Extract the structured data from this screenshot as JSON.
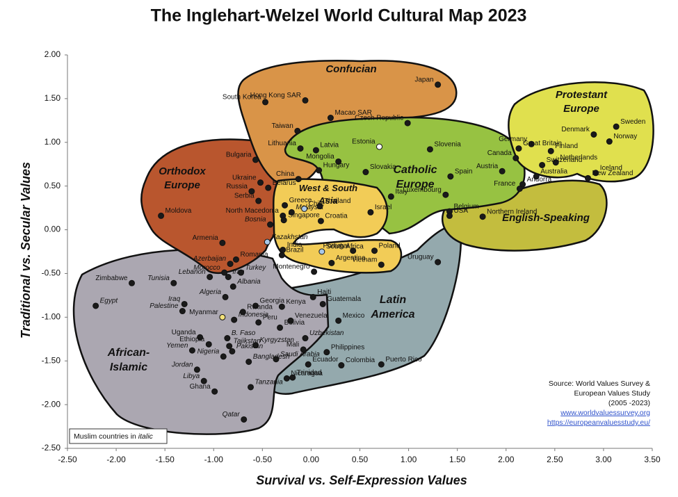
{
  "chart_data": {
    "type": "scatter",
    "title": "The Inglehart-Welzel World Cultural Map 2023",
    "xlabel": "Survival vs. Self-Expression Values",
    "ylabel": "Traditional vs. Secular Values",
    "xlim": [
      -2.5,
      3.5
    ],
    "ylim": [
      -2.5,
      2.0
    ],
    "xticks": [
      {
        "value": -2.5,
        "label": "-2.50"
      },
      {
        "value": -2,
        "label": "-2.00"
      },
      {
        "value": -1.5,
        "label": "-1.50"
      },
      {
        "value": -1,
        "label": "-1.00"
      },
      {
        "value": -0.5,
        "label": "-0.50"
      },
      {
        "value": 0,
        "label": "0.00"
      },
      {
        "value": 0.5,
        "label": "0.50"
      },
      {
        "value": 1,
        "label": "1.00"
      },
      {
        "value": 1.5,
        "label": "1.50"
      },
      {
        "value": 2,
        "label": "2.00"
      },
      {
        "value": 2.5,
        "label": "2.50"
      },
      {
        "value": 3,
        "label": "3.00"
      },
      {
        "value": 3.5,
        "label": "3.50"
      }
    ],
    "yticks": [
      {
        "value": 2,
        "label": "2.00"
      },
      {
        "value": 1.5,
        "label": "1.50"
      },
      {
        "value": 1,
        "label": "1.00"
      },
      {
        "value": 0.5,
        "label": "0.50"
      },
      {
        "value": 0,
        "label": "0.00"
      },
      {
        "value": -0.5,
        "label": "-0.50"
      },
      {
        "value": -1,
        "label": "-1.00"
      },
      {
        "value": -1.5,
        "label": "-1.50"
      },
      {
        "value": -2,
        "label": "-2.00"
      },
      {
        "value": -2.5,
        "label": "-2.50"
      }
    ],
    "marker_color": "#1a1a1a",
    "regions": [
      {
        "lines": [
          "Latin",
          "America"
        ],
        "color": "#94a9ad"
      },
      {
        "lines": [
          "African-",
          "Islamic"
        ],
        "color": "#aba7b1"
      },
      {
        "lines": [
          "Orthodox",
          "Europe"
        ],
        "color": "#b9562e"
      },
      {
        "lines": [
          "Confucian"
        ],
        "color": "#d99448"
      },
      {
        "lines": [
          "English-Speaking"
        ],
        "color": "#c3bd3e"
      },
      {
        "lines": [
          "Catholic",
          "Europe"
        ],
        "color": "#97c242"
      },
      {
        "lines": [
          "West & South",
          "Asia"
        ],
        "color": "#f2cc57"
      },
      {
        "lines": [
          "Protestant",
          "Europe"
        ],
        "color": "#e0e04e"
      }
    ],
    "points": [
      {
        "label": "Japan",
        "x": 1.3,
        "y": 1.66
      },
      {
        "label": "South Korea",
        "x": -0.47,
        "y": 1.46
      },
      {
        "label": "Hong Kong SAR",
        "x": -0.06,
        "y": 1.48
      },
      {
        "label": "Macao SAR",
        "x": 0.2,
        "y": 1.28
      },
      {
        "label": "Taiwan",
        "x": -0.14,
        "y": 1.13
      },
      {
        "label": "Czech Republic",
        "x": 0.99,
        "y": 1.22
      },
      {
        "label": "Lithuania",
        "x": -0.11,
        "y": 0.93
      },
      {
        "label": "Latvia",
        "x": 0.05,
        "y": 0.91
      },
      {
        "label": "Estonia",
        "x": 0.7,
        "y": 0.95,
        "color": "#ffffff"
      },
      {
        "label": "Mongolia",
        "x": 0.28,
        "y": 0.78
      },
      {
        "label": "Slovenia",
        "x": 1.22,
        "y": 0.92
      },
      {
        "label": "Bulgaria",
        "x": -0.57,
        "y": 0.8
      },
      {
        "label": "China",
        "x": -0.13,
        "y": 0.58
      },
      {
        "label": "Hungary",
        "x": 0.08,
        "y": 0.68
      },
      {
        "label": "Slovakia",
        "x": 0.56,
        "y": 0.66
      },
      {
        "label": "Spain",
        "x": 1.43,
        "y": 0.61
      },
      {
        "label": "Ukraine",
        "x": -0.52,
        "y": 0.54
      },
      {
        "label": "Russia",
        "x": -0.61,
        "y": 0.44
      },
      {
        "label": "Belarus",
        "x": -0.44,
        "y": 0.48
      },
      {
        "label": "Serbia",
        "x": -0.54,
        "y": 0.33
      },
      {
        "label": "Greece",
        "x": -0.27,
        "y": 0.28
      },
      {
        "label": "North Macedonia",
        "x": -0.29,
        "y": 0.16
      },
      {
        "label": "Moldova",
        "x": -1.54,
        "y": 0.16
      },
      {
        "label": "Armenia",
        "x": -0.91,
        "y": -0.15
      },
      {
        "label": "Bosnia",
        "x": -0.42,
        "y": 0.06,
        "italic": true
      },
      {
        "label": "Kazakhstan",
        "x": -0.45,
        "y": -0.14,
        "italic": true,
        "color": "#a9c8e8"
      },
      {
        "label": "Singapore",
        "x": -0.28,
        "y": 0.11
      },
      {
        "label": "Malaysia",
        "x": -0.2,
        "y": 0.2,
        "italic": true
      },
      {
        "label": "Thailand",
        "x": 0.09,
        "y": 0.27
      },
      {
        "label": "Chile",
        "x": -0.07,
        "y": 0.24,
        "color": "#a9c8e8"
      },
      {
        "label": "Croatia",
        "x": 0.1,
        "y": 0.1
      },
      {
        "label": "Israel",
        "x": 0.61,
        "y": 0.2
      },
      {
        "label": "Italy",
        "x": 0.82,
        "y": 0.38
      },
      {
        "label": "Luxembourg",
        "x": 1.38,
        "y": 0.4
      },
      {
        "label": "Austria",
        "x": 1.96,
        "y": 0.67
      },
      {
        "label": "Andorra",
        "x": 2.17,
        "y": 0.52
      },
      {
        "label": "France",
        "x": 2.14,
        "y": 0.47
      },
      {
        "label": "Belgium",
        "x": 1.42,
        "y": 0.21
      },
      {
        "label": "USA",
        "x": 1.42,
        "y": 0.16
      },
      {
        "label": "Northern Ireland",
        "x": 1.76,
        "y": 0.15
      },
      {
        "label": "Germany",
        "x": 2.26,
        "y": 0.98
      },
      {
        "label": "Great Britain",
        "x": 2.13,
        "y": 0.93
      },
      {
        "label": "Canada",
        "x": 2.1,
        "y": 0.82
      },
      {
        "label": "Denmark",
        "x": 2.9,
        "y": 1.09
      },
      {
        "label": "Sweden",
        "x": 3.13,
        "y": 1.18
      },
      {
        "label": "Norway",
        "x": 3.06,
        "y": 1.01
      },
      {
        "label": "Finland",
        "x": 2.46,
        "y": 0.9
      },
      {
        "label": "Netherlands",
        "x": 2.51,
        "y": 0.77
      },
      {
        "label": "Switzerland",
        "x": 2.37,
        "y": 0.74
      },
      {
        "label": "Iceland",
        "x": 2.92,
        "y": 0.65
      },
      {
        "label": "Australia",
        "x": 2.31,
        "y": 0.61
      },
      {
        "label": "New Zealand",
        "x": 2.84,
        "y": 0.59
      },
      {
        "label": "Portugal",
        "x": 0.43,
        "y": -0.24
      },
      {
        "label": "Poland",
        "x": 0.65,
        "y": -0.24
      },
      {
        "label": "South Africa",
        "x": 0.11,
        "y": -0.25,
        "color": "#a9c8e8"
      },
      {
        "label": "India",
        "x": -0.29,
        "y": -0.23
      },
      {
        "label": "Brazil",
        "x": -0.3,
        "y": -0.29
      },
      {
        "label": "Vietnam",
        "x": 0.72,
        "y": -0.4
      },
      {
        "label": "Argentina",
        "x": 0.21,
        "y": -0.38
      },
      {
        "label": "Uruguay",
        "x": 1.3,
        "y": -0.37
      },
      {
        "label": "Romania",
        "x": -0.77,
        "y": -0.34
      },
      {
        "label": "Azerbaijan",
        "x": -0.83,
        "y": -0.39,
        "italic": true
      },
      {
        "label": "Morocco",
        "x": -0.89,
        "y": -0.49,
        "italic": true
      },
      {
        "label": "Lebanon",
        "x": -1.04,
        "y": -0.54,
        "italic": true
      },
      {
        "label": "Tunisia",
        "x": -1.41,
        "y": -0.61,
        "italic": true
      },
      {
        "label": "Iran",
        "x": -0.85,
        "y": -0.54,
        "italic": true
      },
      {
        "label": "Turkey",
        "x": -0.72,
        "y": -0.49,
        "italic": true
      },
      {
        "label": "Montenegro",
        "x": 0.03,
        "y": -0.48
      },
      {
        "label": "Zimbabwe",
        "x": -1.84,
        "y": -0.61
      },
      {
        "label": "Albania",
        "x": -0.8,
        "y": -0.65,
        "italic": true
      },
      {
        "label": "Algeria",
        "x": -0.88,
        "y": -0.77,
        "italic": true
      },
      {
        "label": "Iraq",
        "x": -1.3,
        "y": -0.85,
        "italic": true
      },
      {
        "label": "Egypt",
        "x": -2.21,
        "y": -0.87,
        "italic": true
      },
      {
        "label": "Palestine",
        "x": -1.32,
        "y": -0.93,
        "italic": true
      },
      {
        "label": "Georgia",
        "x": -0.57,
        "y": -0.87
      },
      {
        "label": "Kenya",
        "x": -0.3,
        "y": -0.88
      },
      {
        "label": "Haiti",
        "x": 0.02,
        "y": -0.77
      },
      {
        "label": "Guatemala",
        "x": 0.12,
        "y": -0.85
      },
      {
        "label": "Myanmar",
        "x": -0.91,
        "y": -1.0,
        "color": "#f4e27a"
      },
      {
        "label": "Indonesia",
        "x": -0.79,
        "y": -1.03,
        "italic": true
      },
      {
        "label": "Rwanda",
        "x": -0.7,
        "y": -0.94
      },
      {
        "label": "Peru",
        "x": -0.54,
        "y": -1.06
      },
      {
        "label": "Venezuela",
        "x": -0.21,
        "y": -1.04
      },
      {
        "label": "Mexico",
        "x": 0.28,
        "y": -1.04
      },
      {
        "label": "Bolivia",
        "x": -0.32,
        "y": -1.12
      },
      {
        "label": "Uzbekistan",
        "x": -0.06,
        "y": -1.24,
        "italic": true
      },
      {
        "label": "Uganda",
        "x": -1.14,
        "y": -1.23
      },
      {
        "label": "Ethiopia",
        "x": -1.05,
        "y": -1.31
      },
      {
        "label": "B. Faso",
        "x": -0.86,
        "y": -1.24,
        "italic": true
      },
      {
        "label": "Yemen",
        "x": -1.22,
        "y": -1.38,
        "italic": true
      },
      {
        "label": "Nigeria",
        "x": -0.9,
        "y": -1.45,
        "italic": true
      },
      {
        "label": "Tajikstan",
        "x": -0.84,
        "y": -1.33,
        "italic": true
      },
      {
        "label": "Pakistan",
        "x": -0.81,
        "y": -1.39,
        "italic": true
      },
      {
        "label": "Kyrgyzstan",
        "x": -0.57,
        "y": -1.32,
        "italic": true
      },
      {
        "label": "Bangladesh",
        "x": -0.64,
        "y": -1.51,
        "italic": true
      },
      {
        "label": "Saudi Arabia",
        "x": -0.36,
        "y": -1.48,
        "italic": true
      },
      {
        "label": "Mali",
        "x": -0.08,
        "y": -1.37
      },
      {
        "label": "Philippines",
        "x": 0.16,
        "y": -1.4
      },
      {
        "label": "Puerto Rico",
        "x": 0.72,
        "y": -1.54
      },
      {
        "label": "Colombia",
        "x": 0.31,
        "y": -1.55
      },
      {
        "label": "Jordan",
        "x": -1.17,
        "y": -1.6,
        "italic": true
      },
      {
        "label": "Libya",
        "x": -1.1,
        "y": -1.73,
        "italic": true
      },
      {
        "label": "Ghana",
        "x": -0.99,
        "y": -1.85
      },
      {
        "label": "Tanzania",
        "x": -0.62,
        "y": -1.8,
        "italic": true
      },
      {
        "label": "Ecuador",
        "x": -0.03,
        "y": -1.54
      },
      {
        "label": "Trinidad",
        "x": -0.19,
        "y": -1.69
      },
      {
        "label": "Nicaragua",
        "x": -0.25,
        "y": -1.7
      },
      {
        "label": "Qatar",
        "x": -0.69,
        "y": -2.17,
        "italic": true
      }
    ],
    "note": {
      "text": "Muslim countries in",
      "emph": "italic"
    },
    "source": {
      "lines": [
        "Source: World Values Survey &",
        "European Values Study",
        "(2005 -2023)"
      ],
      "links": [
        "www.worldvaluessurvey.org",
        "https://europeanvaluesstudy.eu/"
      ]
    }
  }
}
